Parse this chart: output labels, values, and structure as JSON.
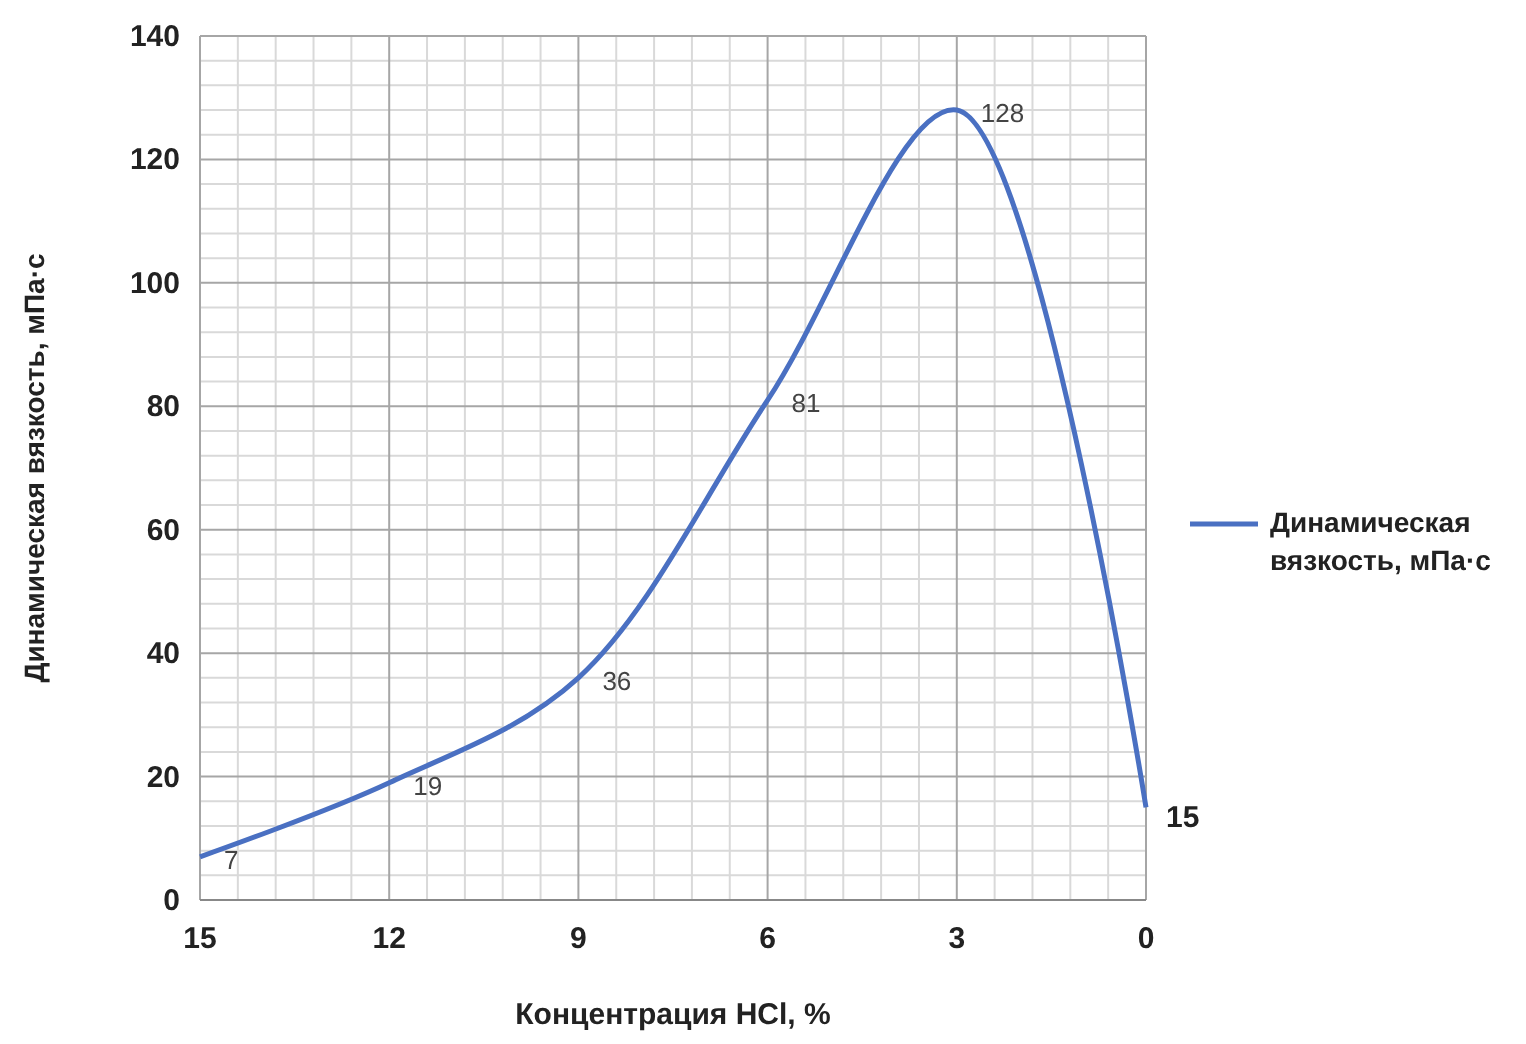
{
  "chart_data": {
    "type": "line",
    "xlabel": "Концентрация HCl, %",
    "ylabel": "Динамическая вязкость, мПа·с",
    "x": [
      15,
      12,
      9,
      6,
      3,
      0
    ],
    "series": [
      {
        "name": "Динамическая вязкость, мПа·с",
        "color": "#4a70c2",
        "values": [
          7,
          19,
          36,
          81,
          128,
          15
        ]
      }
    ],
    "xlim": [
      15,
      0
    ],
    "xticks": [
      15,
      12,
      9,
      6,
      3,
      0
    ],
    "ylim": [
      0,
      140
    ],
    "yticks": [
      0,
      20,
      40,
      60,
      80,
      100,
      120,
      140
    ],
    "grid": true,
    "legend": "right",
    "data_labels": true,
    "marker": "none",
    "line_style": "solid"
  }
}
